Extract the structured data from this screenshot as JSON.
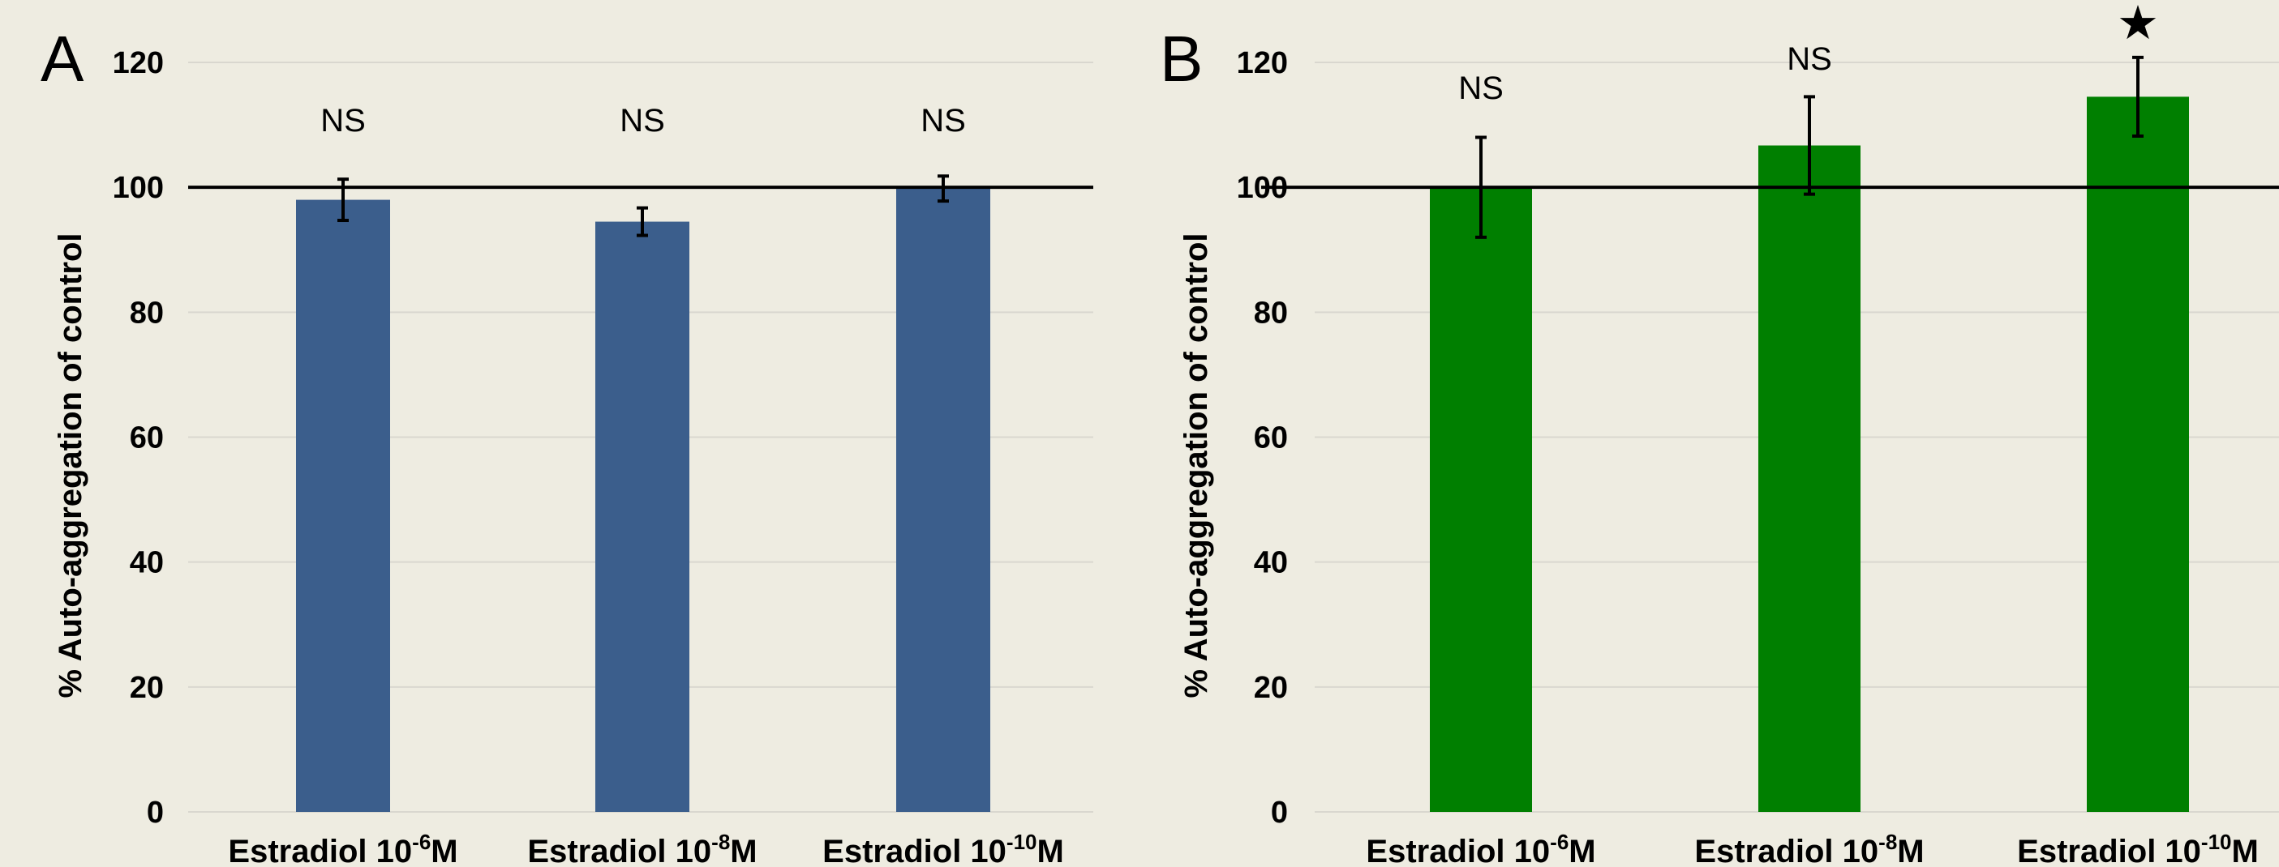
{
  "chart_data": [
    {
      "panel": "A",
      "type": "bar",
      "ylabel": "% Auto-aggregation of control",
      "ylim": [
        0,
        120
      ],
      "yticks": [
        0,
        20,
        40,
        60,
        80,
        100,
        120
      ],
      "grid": true,
      "reference_line": 100,
      "bar_color": "#3b5e8c",
      "categories": [
        {
          "base": "Estradiol 10",
          "exp": "-6",
          "unit": "M"
        },
        {
          "base": "Estradiol 10",
          "exp": "-8",
          "unit": "M"
        },
        {
          "base": "Estradiol 10",
          "exp": "-10",
          "unit": "M"
        }
      ],
      "values": [
        98,
        94.5,
        99.8
      ],
      "error": [
        3.3,
        2.2,
        2.0
      ],
      "annotations": [
        "NS",
        "NS",
        "NS"
      ]
    },
    {
      "panel": "B",
      "type": "bar",
      "ylabel": "% Auto-aggregation of control",
      "ylim": [
        0,
        120
      ],
      "yticks": [
        0,
        20,
        40,
        60,
        80,
        100,
        120
      ],
      "grid": true,
      "reference_line": 100,
      "bar_color": "#007f00",
      "categories": [
        {
          "base": "Estradiol 10",
          "exp": "-6",
          "unit": "M"
        },
        {
          "base": "Estradiol 10",
          "exp": "-8",
          "unit": "M"
        },
        {
          "base": "Estradiol 10",
          "exp": "-10",
          "unit": "M"
        }
      ],
      "values": [
        100,
        106.7,
        114.5
      ],
      "error": [
        8.0,
        7.8,
        6.3
      ],
      "annotations": [
        "NS",
        "NS",
        "★"
      ]
    }
  ]
}
